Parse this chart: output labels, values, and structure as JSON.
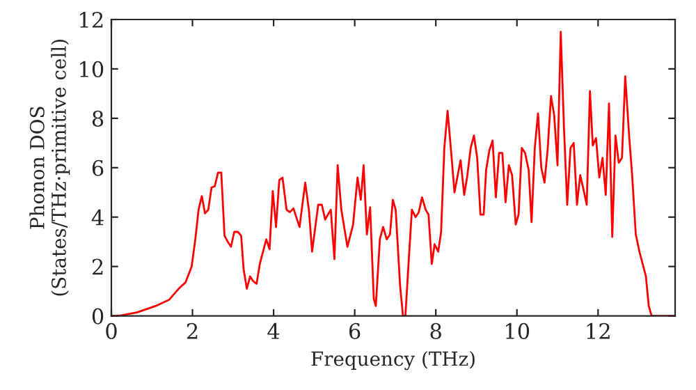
{
  "chart_data": {
    "type": "line",
    "xlabel": "Frequency (THz)",
    "ylabel": "Phonon DOS\n(States/THz·primitive cell)",
    "xlim": [
      0,
      13.9
    ],
    "ylim": [
      0,
      12
    ],
    "xticks": [
      0,
      2,
      4,
      6,
      8,
      10,
      12
    ],
    "yticks": [
      0,
      2,
      4,
      6,
      8,
      10,
      12
    ],
    "grid": false,
    "legend": false,
    "marker": "none",
    "line_style": "solid",
    "series": [
      {
        "color": "#ff0000",
        "x": [
          0,
          0.2,
          0.63,
          1.09,
          1.43,
          1.66,
          1.83,
          1.98,
          2.07,
          2.15,
          2.23,
          2.31,
          2.39,
          2.47,
          2.55,
          2.63,
          2.71,
          2.79,
          2.87,
          2.95,
          3.03,
          3.12,
          3.2,
          3.26,
          3.34,
          3.42,
          3.5,
          3.58,
          3.66,
          3.74,
          3.82,
          3.9,
          3.98,
          4.06,
          4.14,
          4.22,
          4.32,
          4.4,
          4.49,
          4.64,
          4.78,
          4.87,
          4.95,
          5.1,
          5.19,
          5.27,
          5.41,
          5.5,
          5.58,
          5.67,
          5.82,
          5.96,
          6.07,
          6.15,
          6.22,
          6.3,
          6.38,
          6.47,
          6.52,
          6.62,
          6.7,
          6.79,
          6.87,
          6.94,
          7.01,
          7.12,
          7.19,
          7.25,
          7.33,
          7.41,
          7.5,
          7.58,
          7.66,
          7.75,
          7.82,
          7.9,
          7.97,
          8.06,
          8.13,
          8.21,
          8.29,
          8.38,
          8.46,
          8.54,
          8.61,
          8.7,
          8.77,
          8.86,
          8.94,
          9.02,
          9.1,
          9.18,
          9.24,
          9.32,
          9.4,
          9.48,
          9.56,
          9.64,
          9.72,
          9.8,
          9.88,
          9.97,
          10.04,
          10.12,
          10.2,
          10.29,
          10.36,
          10.44,
          10.52,
          10.6,
          10.68,
          10.76,
          10.84,
          10.92,
          11.0,
          11.08,
          11.16,
          11.24,
          11.32,
          11.4,
          11.48,
          11.56,
          11.63,
          11.72,
          11.8,
          11.87,
          11.95,
          12.03,
          12.11,
          12.19,
          12.27,
          12.35,
          12.43,
          12.51,
          12.59,
          12.67,
          12.77,
          12.84,
          12.93,
          13.02,
          13.1,
          13.18,
          13.25,
          13.32,
          13.9
        ],
        "values": [
          0,
          0.01,
          0.14,
          0.4,
          0.66,
          1.1,
          1.36,
          2.0,
          3.1,
          4.3,
          4.85,
          4.15,
          4.3,
          5.2,
          5.25,
          5.8,
          5.8,
          3.25,
          3.0,
          2.8,
          3.4,
          3.4,
          3.25,
          1.9,
          1.1,
          1.6,
          1.4,
          1.3,
          2.1,
          2.6,
          3.1,
          2.7,
          5.05,
          3.6,
          5.5,
          5.6,
          4.3,
          4.2,
          4.35,
          3.6,
          5.4,
          4.3,
          2.6,
          4.5,
          4.5,
          3.9,
          4.3,
          2.3,
          6.1,
          4.3,
          2.8,
          3.7,
          5.6,
          4.7,
          6.1,
          3.3,
          4.4,
          0.7,
          0.4,
          3.1,
          3.6,
          3.1,
          3.3,
          4.7,
          4.3,
          1.2,
          0,
          0,
          2.2,
          4.3,
          4.0,
          4.2,
          4.8,
          4.3,
          4.1,
          2.1,
          2.9,
          2.6,
          3.4,
          6.8,
          8.3,
          6.6,
          5.0,
          5.7,
          6.3,
          4.9,
          5.6,
          6.8,
          7.3,
          6.4,
          4.1,
          4.1,
          5.9,
          6.7,
          7.1,
          4.8,
          6.6,
          6.6,
          4.6,
          6.1,
          5.7,
          3.7,
          4.1,
          6.8,
          6.6,
          5.9,
          3.8,
          6.8,
          8.2,
          6.0,
          5.4,
          6.8,
          8.9,
          8.1,
          6.1,
          11.5,
          7.6,
          4.5,
          6.8,
          7.0,
          4.5,
          5.7,
          5.2,
          4.5,
          9.1,
          6.9,
          7.2,
          5.6,
          6.4,
          4.9,
          8.6,
          3.2,
          7.3,
          6.2,
          6.4,
          9.7,
          7.2,
          5.7,
          3.3,
          2.6,
          2.1,
          1.6,
          0.4,
          0,
          0
        ]
      }
    ]
  }
}
